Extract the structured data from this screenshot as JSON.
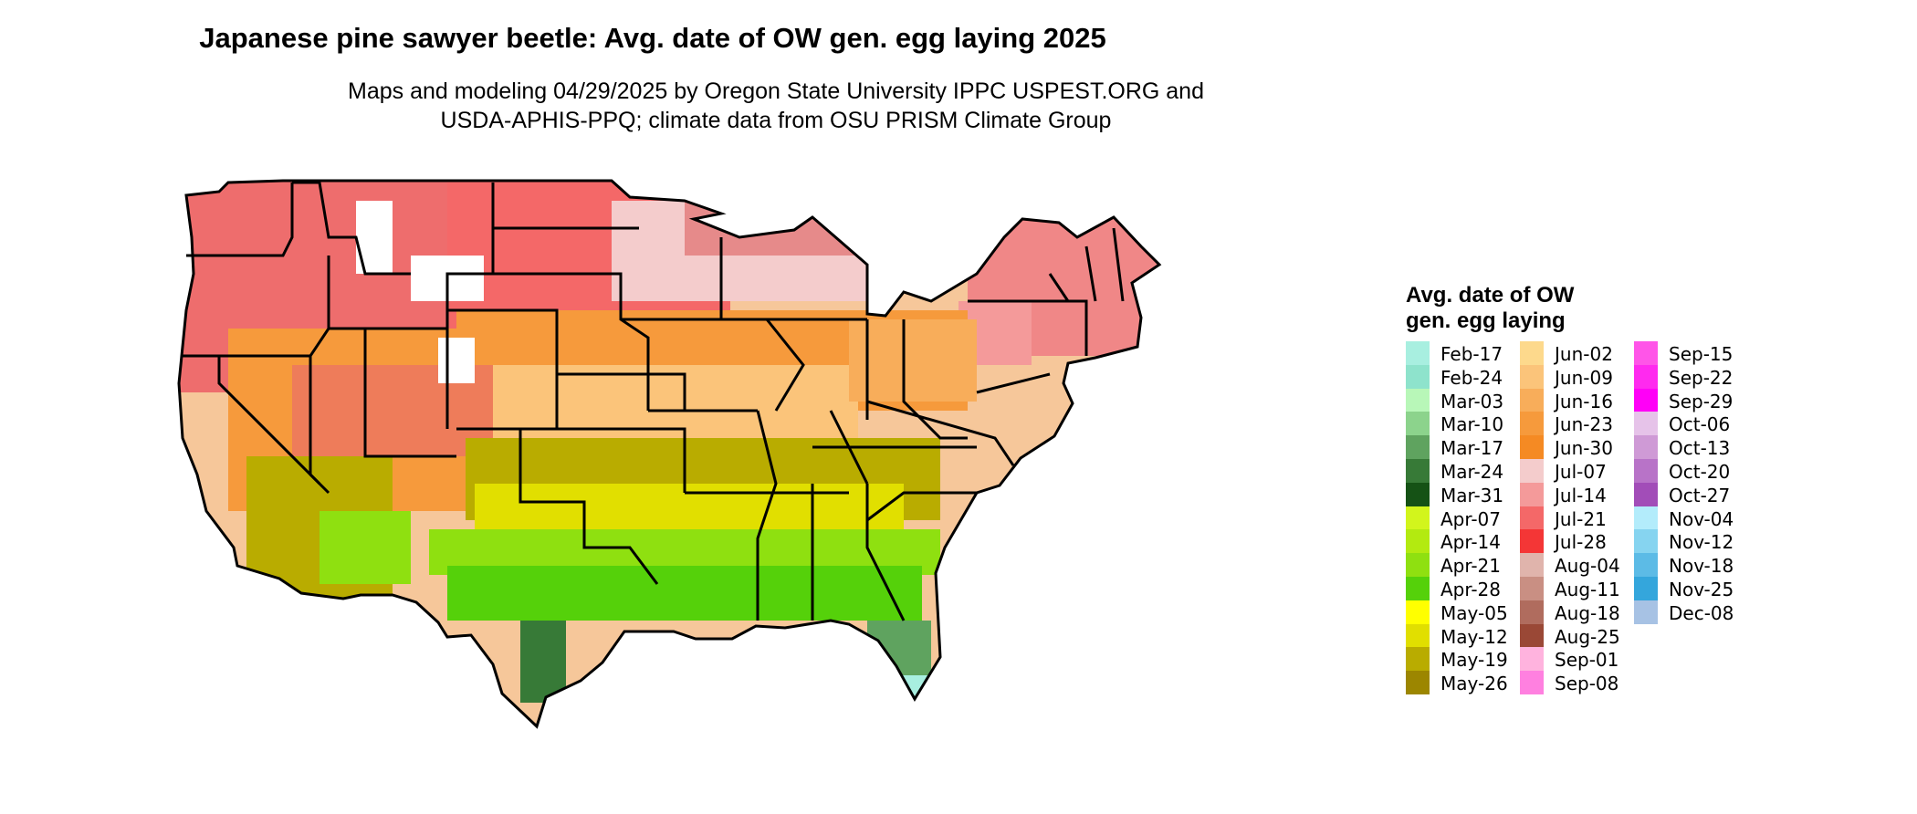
{
  "title": "Japanese pine sawyer beetle: Avg. date of OW gen. egg laying 2025",
  "subtitle_line1": "Maps and modeling 04/29/2025 by Oregon State University IPPC USPEST.ORG and",
  "subtitle_line2": "USDA-APHIS-PPQ; climate data from OSU PRISM Climate Group",
  "legend": {
    "title_line1": "Avg. date of OW",
    "title_line2": "gen. egg laying",
    "columns": [
      [
        {
          "label": "Feb-17",
          "color": "#a8efe0"
        },
        {
          "label": "Feb-24",
          "color": "#8ee3cc"
        },
        {
          "label": "Mar-03",
          "color": "#b8f7b8"
        },
        {
          "label": "Mar-10",
          "color": "#8cd38c"
        },
        {
          "label": "Mar-17",
          "color": "#5fa35f"
        },
        {
          "label": "Mar-24",
          "color": "#377a37"
        },
        {
          "label": "Mar-31",
          "color": "#155215"
        },
        {
          "label": "Apr-07",
          "color": "#d2f51c"
        },
        {
          "label": "Apr-14",
          "color": "#b3ea10"
        },
        {
          "label": "Apr-21",
          "color": "#8fe010"
        },
        {
          "label": "Apr-28",
          "color": "#55d10a"
        },
        {
          "label": "May-05",
          "color": "#ffff00"
        },
        {
          "label": "May-12",
          "color": "#e1df00"
        },
        {
          "label": "May-19",
          "color": "#b9ac00"
        },
        {
          "label": "May-26",
          "color": "#9c8600"
        }
      ],
      [
        {
          "label": "Jun-02",
          "color": "#fdd98c"
        },
        {
          "label": "Jun-09",
          "color": "#fbc47a"
        },
        {
          "label": "Jun-16",
          "color": "#f8ad5a"
        },
        {
          "label": "Jun-23",
          "color": "#f69a3c"
        },
        {
          "label": "Jun-30",
          "color": "#f58a23"
        },
        {
          "label": "Jul-07",
          "color": "#f4cccc"
        },
        {
          "label": "Jul-14",
          "color": "#f49a9a"
        },
        {
          "label": "Jul-21",
          "color": "#f46868"
        },
        {
          "label": "Jul-28",
          "color": "#f43636"
        },
        {
          "label": "Aug-04",
          "color": "#e0b4ac"
        },
        {
          "label": "Aug-11",
          "color": "#c98f83"
        },
        {
          "label": "Aug-18",
          "color": "#b06c5e"
        },
        {
          "label": "Aug-25",
          "color": "#9a4836"
        },
        {
          "label": "Sep-01",
          "color": "#ffb3de"
        },
        {
          "label": "Sep-08",
          "color": "#ff80e0"
        }
      ],
      [
        {
          "label": "Sep-15",
          "color": "#ff55e8"
        },
        {
          "label": "Sep-22",
          "color": "#ff2aef"
        },
        {
          "label": "Sep-29",
          "color": "#ff00f7"
        },
        {
          "label": "Oct-06",
          "color": "#e6c3e9"
        },
        {
          "label": "Oct-13",
          "color": "#cf9ad6"
        },
        {
          "label": "Oct-20",
          "color": "#b873c8"
        },
        {
          "label": "Oct-27",
          "color": "#a24db8"
        },
        {
          "label": "Nov-04",
          "color": "#b3ecfb"
        },
        {
          "label": "Nov-12",
          "color": "#86d4f0"
        },
        {
          "label": "Nov-18",
          "color": "#5cbbe6"
        },
        {
          "label": "Nov-25",
          "color": "#34a6dc"
        },
        {
          "label": "Dec-08",
          "color": "#a7c2e4"
        }
      ]
    ]
  }
}
